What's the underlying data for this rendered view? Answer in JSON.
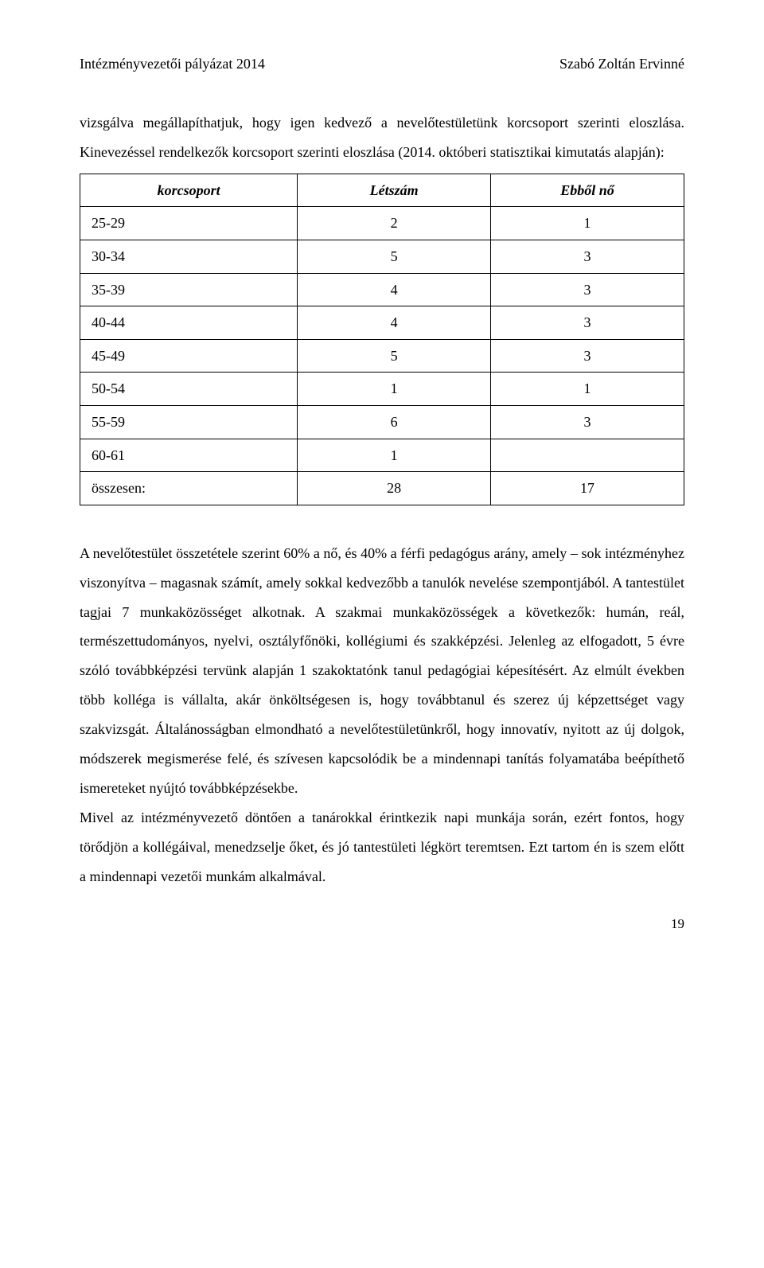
{
  "header": {
    "left": "Intézményvezetői pályázat 2014",
    "right": "Szabó Zoltán Ervinné"
  },
  "intro": "vizsgálva megállapíthatjuk, hogy igen kedvező a nevelőtestületünk korcsoport szerinti eloszlása. Kinevezéssel rendelkezők korcsoport szerinti eloszlása (2014. októberi statisztikai kimutatás alapján):",
  "table": {
    "columns": [
      "korcsoport",
      "Létszám",
      "Ebből nő"
    ],
    "rows": [
      [
        "25-29",
        "2",
        "1"
      ],
      [
        "30-34",
        "5",
        "3"
      ],
      [
        "35-39",
        "4",
        "3"
      ],
      [
        "40-44",
        "4",
        "3"
      ],
      [
        "45-49",
        "5",
        "3"
      ],
      [
        "50-54",
        "1",
        "1"
      ],
      [
        "55-59",
        "6",
        "3"
      ],
      [
        "60-61",
        "1",
        ""
      ],
      [
        "összesen:",
        "28",
        "17"
      ]
    ]
  },
  "body1": "A nevelőtestület összetétele szerint 60% a nő, és 40% a férfi pedagógus arány, amely – sok intézményhez viszonyítva – magasnak számít, amely sokkal kedvezőbb a tanulók nevelése szempontjából. A tantestület tagjai 7 munkaközösséget alkotnak. A szakmai munkaközösségek a következők: humán, reál, természettudományos, nyelvi, osztályfőnöki, kollégiumi és szakképzési. Jelenleg az elfogadott, 5 évre szóló továbbképzési tervünk alapján 1 szakoktatónk tanul pedagógiai képesítésért. Az elmúlt években több kolléga is vállalta, akár önköltségesen is, hogy továbbtanul és szerez új képzettséget vagy szakvizsgát. Általánosságban elmondható a nevelőtestületünkről, hogy innovatív, nyitott az új dolgok, módszerek megismerése felé, és szívesen kapcsolódik be a mindennapi tanítás folyamatába beépíthető ismereteket nyújtó továbbképzésekbe.",
  "body2": "Mivel az intézményvezető döntően a tanárokkal érintkezik napi munkája során, ezért fontos, hogy törődjön a kollégáival, menedzselje őket, és jó tantestületi légkört teremtsen. Ezt tartom én is szem előtt a mindennapi vezetői munkám alkalmával.",
  "page_number": "19"
}
